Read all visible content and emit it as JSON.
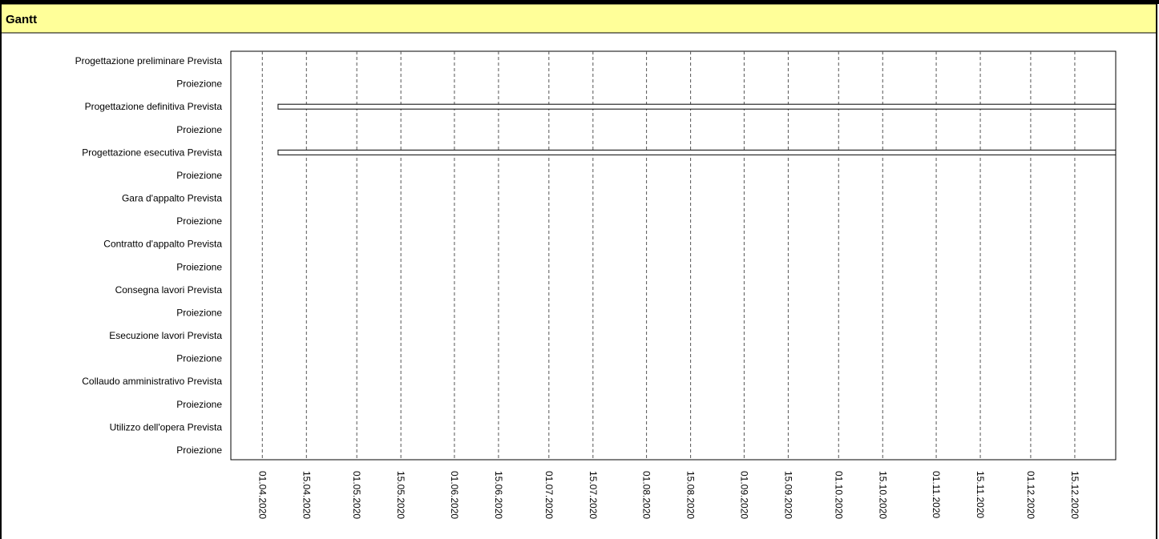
{
  "chart_data": {
    "type": "gantt",
    "title": "Gantt",
    "categories": [
      "Progettazione preliminare Prevista",
      "Proiezione",
      "Progettazione definitiva Prevista",
      "Proiezione",
      "Progettazione esecutiva Prevista",
      "Proiezione",
      "Gara d'appalto Prevista",
      "Proiezione",
      "Contratto d'appalto Prevista",
      "Proiezione",
      "Consegna lavori Prevista",
      "Proiezione",
      "Esecuzione lavori Prevista",
      "Proiezione",
      "Collaudo amministrativo Prevista",
      "Proiezione",
      "Utilizzo dell'opera Prevista",
      "Proiezione"
    ],
    "start": [
      null,
      null,
      "2020-04-06",
      null,
      "2020-04-06",
      null,
      null,
      null,
      null,
      null,
      null,
      null,
      null,
      null,
      null,
      null,
      null,
      null
    ],
    "end": [
      null,
      null,
      "2020-12-28",
      null,
      "2020-12-28",
      null,
      null,
      null,
      null,
      null,
      null,
      null,
      null,
      null,
      null,
      null,
      null,
      null
    ],
    "color": "#ffffff",
    "xlim": [
      "2020-03-22",
      "2020-12-28"
    ],
    "xticks": [
      {
        "value": "2020-04-01",
        "label": "01.04.2020"
      },
      {
        "value": "2020-04-15",
        "label": "15.04.2020"
      },
      {
        "value": "2020-05-01",
        "label": "01.05.2020"
      },
      {
        "value": "2020-05-15",
        "label": "15.05.2020"
      },
      {
        "value": "2020-06-01",
        "label": "01.06.2020"
      },
      {
        "value": "2020-06-15",
        "label": "15.06.2020"
      },
      {
        "value": "2020-07-01",
        "label": "01.07.2020"
      },
      {
        "value": "2020-07-15",
        "label": "15.07.2020"
      },
      {
        "value": "2020-08-01",
        "label": "01.08.2020"
      },
      {
        "value": "2020-08-15",
        "label": "15.08.2020"
      },
      {
        "value": "2020-09-01",
        "label": "01.09.2020"
      },
      {
        "value": "2020-09-15",
        "label": "15.09.2020"
      },
      {
        "value": "2020-10-01",
        "label": "01.10.2020"
      },
      {
        "value": "2020-10-15",
        "label": "15.10.2020"
      },
      {
        "value": "2020-11-01",
        "label": "01.11.2020"
      },
      {
        "value": "2020-11-15",
        "label": "15.11.2020"
      },
      {
        "value": "2020-12-01",
        "label": "01.12.2020"
      },
      {
        "value": "2020-12-15",
        "label": "15.12.2020"
      }
    ],
    "grid": true
  }
}
